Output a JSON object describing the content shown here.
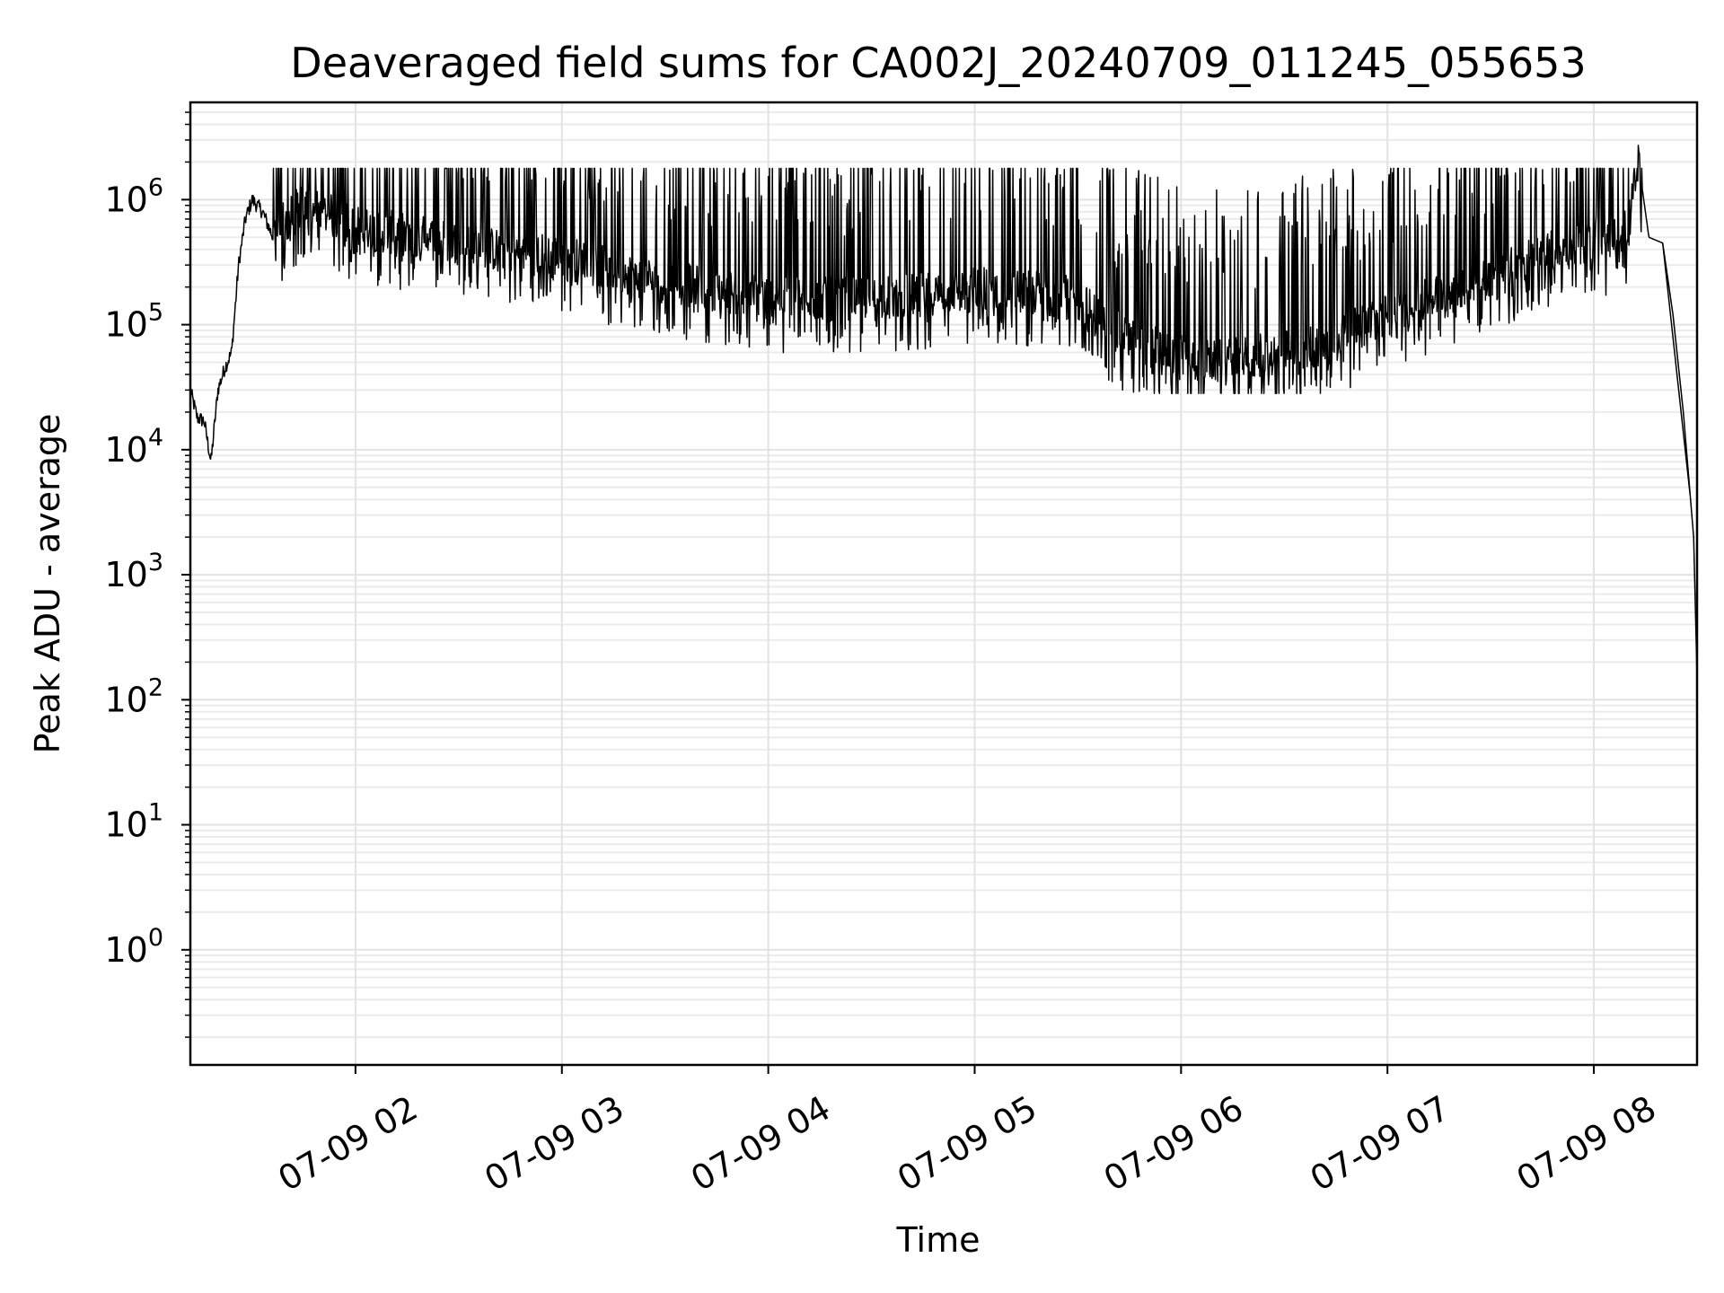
{
  "chart_data": {
    "type": "line",
    "title": "Deaveraged field sums for CA002J_20240709_011245_055653",
    "xlabel": "Time",
    "ylabel": "Peak ADU - average",
    "x_range": [
      "2024-07-09 01:12",
      "2024-07-09 08:30"
    ],
    "ylim": [
      0.12,
      6000000
    ],
    "y_scale": "log",
    "grid": true,
    "line_color": "#000000",
    "x_ticks": [
      "07-09 02",
      "07-09 03",
      "07-09 04",
      "07-09 05",
      "07-09 06",
      "07-09 07",
      "07-09 08"
    ],
    "y_ticks": [
      {
        "base": "10",
        "exp": "0"
      },
      {
        "base": "10",
        "exp": "1"
      },
      {
        "base": "10",
        "exp": "2"
      },
      {
        "base": "10",
        "exp": "3"
      },
      {
        "base": "10",
        "exp": "4"
      },
      {
        "base": "10",
        "exp": "5"
      },
      {
        "base": "10",
        "exp": "6"
      }
    ],
    "series": [
      {
        "x": [
          "01:12",
          "01:14",
          "01:16",
          "01:18",
          "01:20",
          "01:22",
          "01:24",
          "01:26",
          "01:28",
          "01:30",
          "01:33",
          "01:36",
          "01:40",
          "01:45",
          "01:50",
          "01:55",
          "02:00",
          "02:10",
          "02:20",
          "02:30",
          "02:40",
          "02:50",
          "03:00",
          "03:10",
          "03:20",
          "03:30",
          "03:40",
          "03:50",
          "04:00",
          "04:10",
          "04:20",
          "04:30",
          "04:40",
          "04:50",
          "05:00",
          "05:10",
          "05:20",
          "05:30",
          "05:40",
          "05:50",
          "06:00",
          "06:10",
          "06:20",
          "06:30",
          "06:40",
          "06:50",
          "07:00",
          "07:10",
          "07:20",
          "07:30",
          "07:40",
          "07:50",
          "08:00",
          "08:05",
          "08:10",
          "08:13",
          "08:16",
          "08:20",
          "08:23",
          "08:26",
          "08:29",
          "08:30",
          "08:30"
        ],
        "y": [
          30000,
          18000,
          17000,
          8000,
          30000,
          45000,
          60000,
          300000,
          700000,
          1000000,
          800000,
          500000,
          700000,
          900000,
          800000,
          700000,
          600000,
          550000,
          500000,
          450000,
          400000,
          380000,
          350000,
          300000,
          250000,
          220000,
          200000,
          180000,
          170000,
          165000,
          160000,
          165000,
          170000,
          180000,
          200000,
          190000,
          180000,
          160000,
          90000,
          70000,
          55000,
          50000,
          55000,
          60000,
          70000,
          90000,
          120000,
          150000,
          200000,
          250000,
          320000,
          400000,
          500000,
          450000,
          600000,
          2000000,
          500000,
          450000,
          120000,
          20000,
          2000,
          150,
          0.12
        ]
      }
    ]
  }
}
